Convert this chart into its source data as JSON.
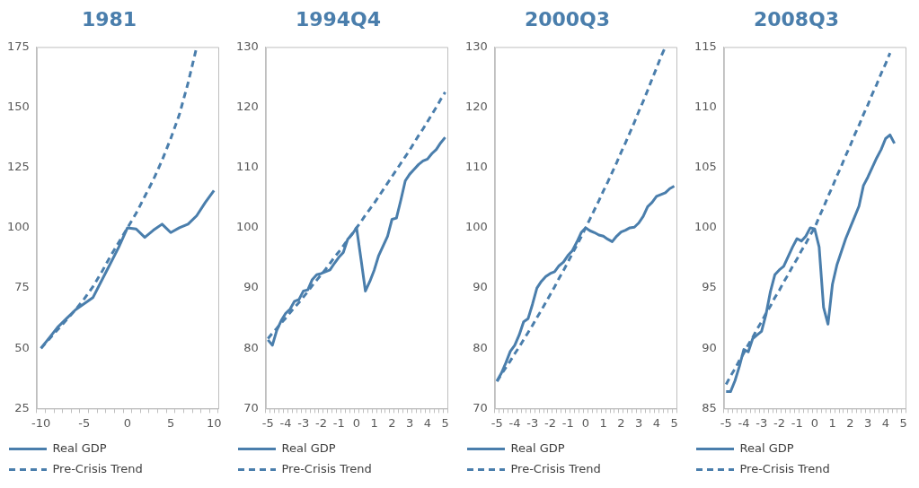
{
  "chart_data": [
    {
      "type": "line",
      "title": "1981",
      "categories": [
        "-10",
        null,
        null,
        null,
        null,
        "-5",
        null,
        null,
        null,
        null,
        "0",
        null,
        null,
        null,
        null,
        "5",
        null,
        null,
        null,
        null,
        "10"
      ],
      "ylim": [
        25,
        175
      ],
      "yticks": [
        25,
        50,
        75,
        100,
        125,
        150,
        175
      ],
      "grid": false,
      "legend": "bottom",
      "marker": "none",
      "series": [
        {
          "name": "Real GDP",
          "color": "#4a7eac",
          "line_style": "solid",
          "values": [
            50,
            54.5,
            59,
            62.5,
            66,
            68.5,
            71,
            78,
            85,
            92,
            100,
            99.5,
            96,
            99,
            101.5,
            98,
            100,
            101.5,
            105,
            110.5,
            115.5
          ]
        },
        {
          "name": "Pre-Crisis Trend",
          "color": "#4a7eac",
          "line_style": "dashed",
          "values": [
            50,
            54,
            58,
            62,
            66,
            70.5,
            75.5,
            81.5,
            88,
            94,
            100,
            106,
            113,
            120,
            128,
            137,
            147,
            160,
            175,
            null,
            null
          ]
        }
      ]
    },
    {
      "type": "line",
      "title": "1994Q4",
      "categories": [
        "-5",
        null,
        null,
        null,
        "-4",
        null,
        null,
        null,
        "-3",
        null,
        null,
        null,
        "-2",
        null,
        null,
        null,
        "-1",
        null,
        null,
        null,
        "0",
        null,
        null,
        null,
        "1",
        null,
        null,
        null,
        "2",
        null,
        null,
        null,
        "3",
        null,
        null,
        null,
        "4",
        null,
        null,
        null,
        "5"
      ],
      "ylim": [
        70,
        130
      ],
      "yticks": [
        70,
        80,
        90,
        100,
        110,
        120,
        130
      ],
      "grid": false,
      "legend": "bottom",
      "marker": "none",
      "series": [
        {
          "name": "Real GDP",
          "color": "#4a7eac",
          "line_style": "solid",
          "values": [
            81.4,
            80.5,
            83,
            84.6,
            85.8,
            86.5,
            87.8,
            88.1,
            89.5,
            89.7,
            91.4,
            92.2,
            92.4,
            92.7,
            93,
            94.1,
            95.1,
            95.9,
            98.1,
            98.9,
            100,
            94.8,
            89.5,
            91.1,
            93,
            95.4,
            97,
            98.6,
            101.4,
            101.6,
            104.6,
            107.8,
            108.9,
            109.7,
            110.5,
            111.1,
            111.4,
            112.3,
            113,
            114.1,
            115
          ]
        },
        {
          "name": "Pre-Crisis Trend",
          "color": "#4a7eac",
          "line_style": "dashed",
          "values": [
            81.6,
            82.5,
            83.3,
            84.2,
            85,
            85.9,
            86.8,
            87.6,
            88.5,
            89.4,
            90.4,
            91.3,
            92.2,
            93.1,
            94.1,
            95.1,
            96,
            97,
            98,
            99,
            100,
            101,
            102.1,
            103.1,
            104.1,
            105.2,
            106.3,
            107.4,
            108.5,
            109.6,
            110.7,
            111.8,
            112.9,
            114.1,
            115.3,
            116.4,
            117.6,
            118.8,
            120,
            121.3,
            122.5
          ]
        }
      ]
    },
    {
      "type": "line",
      "title": "2000Q3",
      "categories": [
        "-5",
        null,
        null,
        null,
        "-4",
        null,
        null,
        null,
        "-3",
        null,
        null,
        null,
        "-2",
        null,
        null,
        null,
        "-1",
        null,
        null,
        null,
        "0",
        null,
        null,
        null,
        "1",
        null,
        null,
        null,
        "2",
        null,
        null,
        null,
        "3",
        null,
        null,
        null,
        "4",
        null,
        null,
        null,
        "5"
      ],
      "ylim": [
        70,
        130
      ],
      "yticks": [
        70,
        80,
        90,
        100,
        110,
        120,
        130
      ],
      "grid": false,
      "legend": "bottom",
      "marker": "none",
      "series": [
        {
          "name": "Real GDP",
          "color": "#4a7eac",
          "line_style": "solid",
          "values": [
            74.6,
            75.9,
            77.6,
            79.5,
            80.5,
            82.2,
            84.4,
            84.9,
            87.3,
            90,
            91.1,
            91.9,
            92.4,
            92.7,
            93.7,
            94.3,
            95.4,
            96.2,
            97.6,
            99.2,
            100,
            99.5,
            99.2,
            98.8,
            98.6,
            98.1,
            97.7,
            98.6,
            99.3,
            99.6,
            100,
            100.1,
            100.8,
            101.9,
            103.5,
            104.2,
            105.2,
            105.5,
            105.8,
            106.5,
            106.9
          ]
        },
        {
          "name": "Pre-Crisis Trend",
          "color": "#4a7eac",
          "line_style": "dashed",
          "values": [
            74.5,
            75.7,
            76.8,
            77.9,
            79.1,
            80.2,
            81.4,
            82.6,
            83.8,
            85.1,
            86.3,
            87.6,
            88.9,
            90.2,
            91.6,
            92.9,
            94.3,
            95.7,
            97.1,
            98.5,
            100,
            101.5,
            103,
            104.5,
            106.1,
            107.6,
            109.2,
            110.8,
            112.5,
            114.1,
            115.8,
            117.5,
            119.3,
            121,
            122.8,
            124.7,
            126.5,
            128.4,
            130,
            null,
            null
          ]
        }
      ]
    },
    {
      "type": "line",
      "title": "2008Q3",
      "categories": [
        "-5",
        null,
        null,
        null,
        "-4",
        null,
        null,
        null,
        "-3",
        null,
        null,
        null,
        "-2",
        null,
        null,
        null,
        "-1",
        null,
        null,
        null,
        "0",
        null,
        null,
        null,
        "1",
        null,
        null,
        null,
        "2",
        null,
        null,
        null,
        "3",
        null,
        null,
        null,
        "4",
        null,
        null,
        null,
        "5"
      ],
      "ylim": [
        85,
        115
      ],
      "yticks": [
        85,
        90,
        95,
        100,
        105,
        110,
        115
      ],
      "grid": false,
      "legend": "bottom",
      "marker": "none",
      "series": [
        {
          "name": "Real GDP",
          "color": "#4a7eac",
          "line_style": "solid",
          "values": [
            86.4,
            86.4,
            87.3,
            88.5,
            89.9,
            89.7,
            90.8,
            91.1,
            91.4,
            92.8,
            94.7,
            96.1,
            96.5,
            96.8,
            97.6,
            98.4,
            99.1,
            98.9,
            99.3,
            100,
            99.9,
            98.4,
            93.4,
            92,
            95.3,
            96.9,
            98,
            99.1,
            100,
            100.9,
            101.8,
            103.5,
            104.2,
            105,
            105.8,
            106.5,
            107.4,
            107.7,
            107,
            null,
            null
          ]
        },
        {
          "name": "Pre-Crisis Trend",
          "color": "#4a7eac",
          "line_style": "dashed",
          "values": [
            87,
            87.7,
            88.3,
            89,
            89.6,
            90.3,
            90.9,
            91.6,
            92.2,
            92.9,
            93.5,
            94.2,
            94.8,
            95.5,
            96.1,
            96.8,
            97.4,
            98.1,
            98.7,
            99.4,
            100,
            100.9,
            101.7,
            102.6,
            103.4,
            104.3,
            105.1,
            106,
            106.8,
            107.7,
            108.5,
            109.4,
            110.2,
            111.1,
            111.9,
            112.8,
            113.6,
            114.5,
            null,
            null,
            null
          ]
        }
      ]
    }
  ]
}
